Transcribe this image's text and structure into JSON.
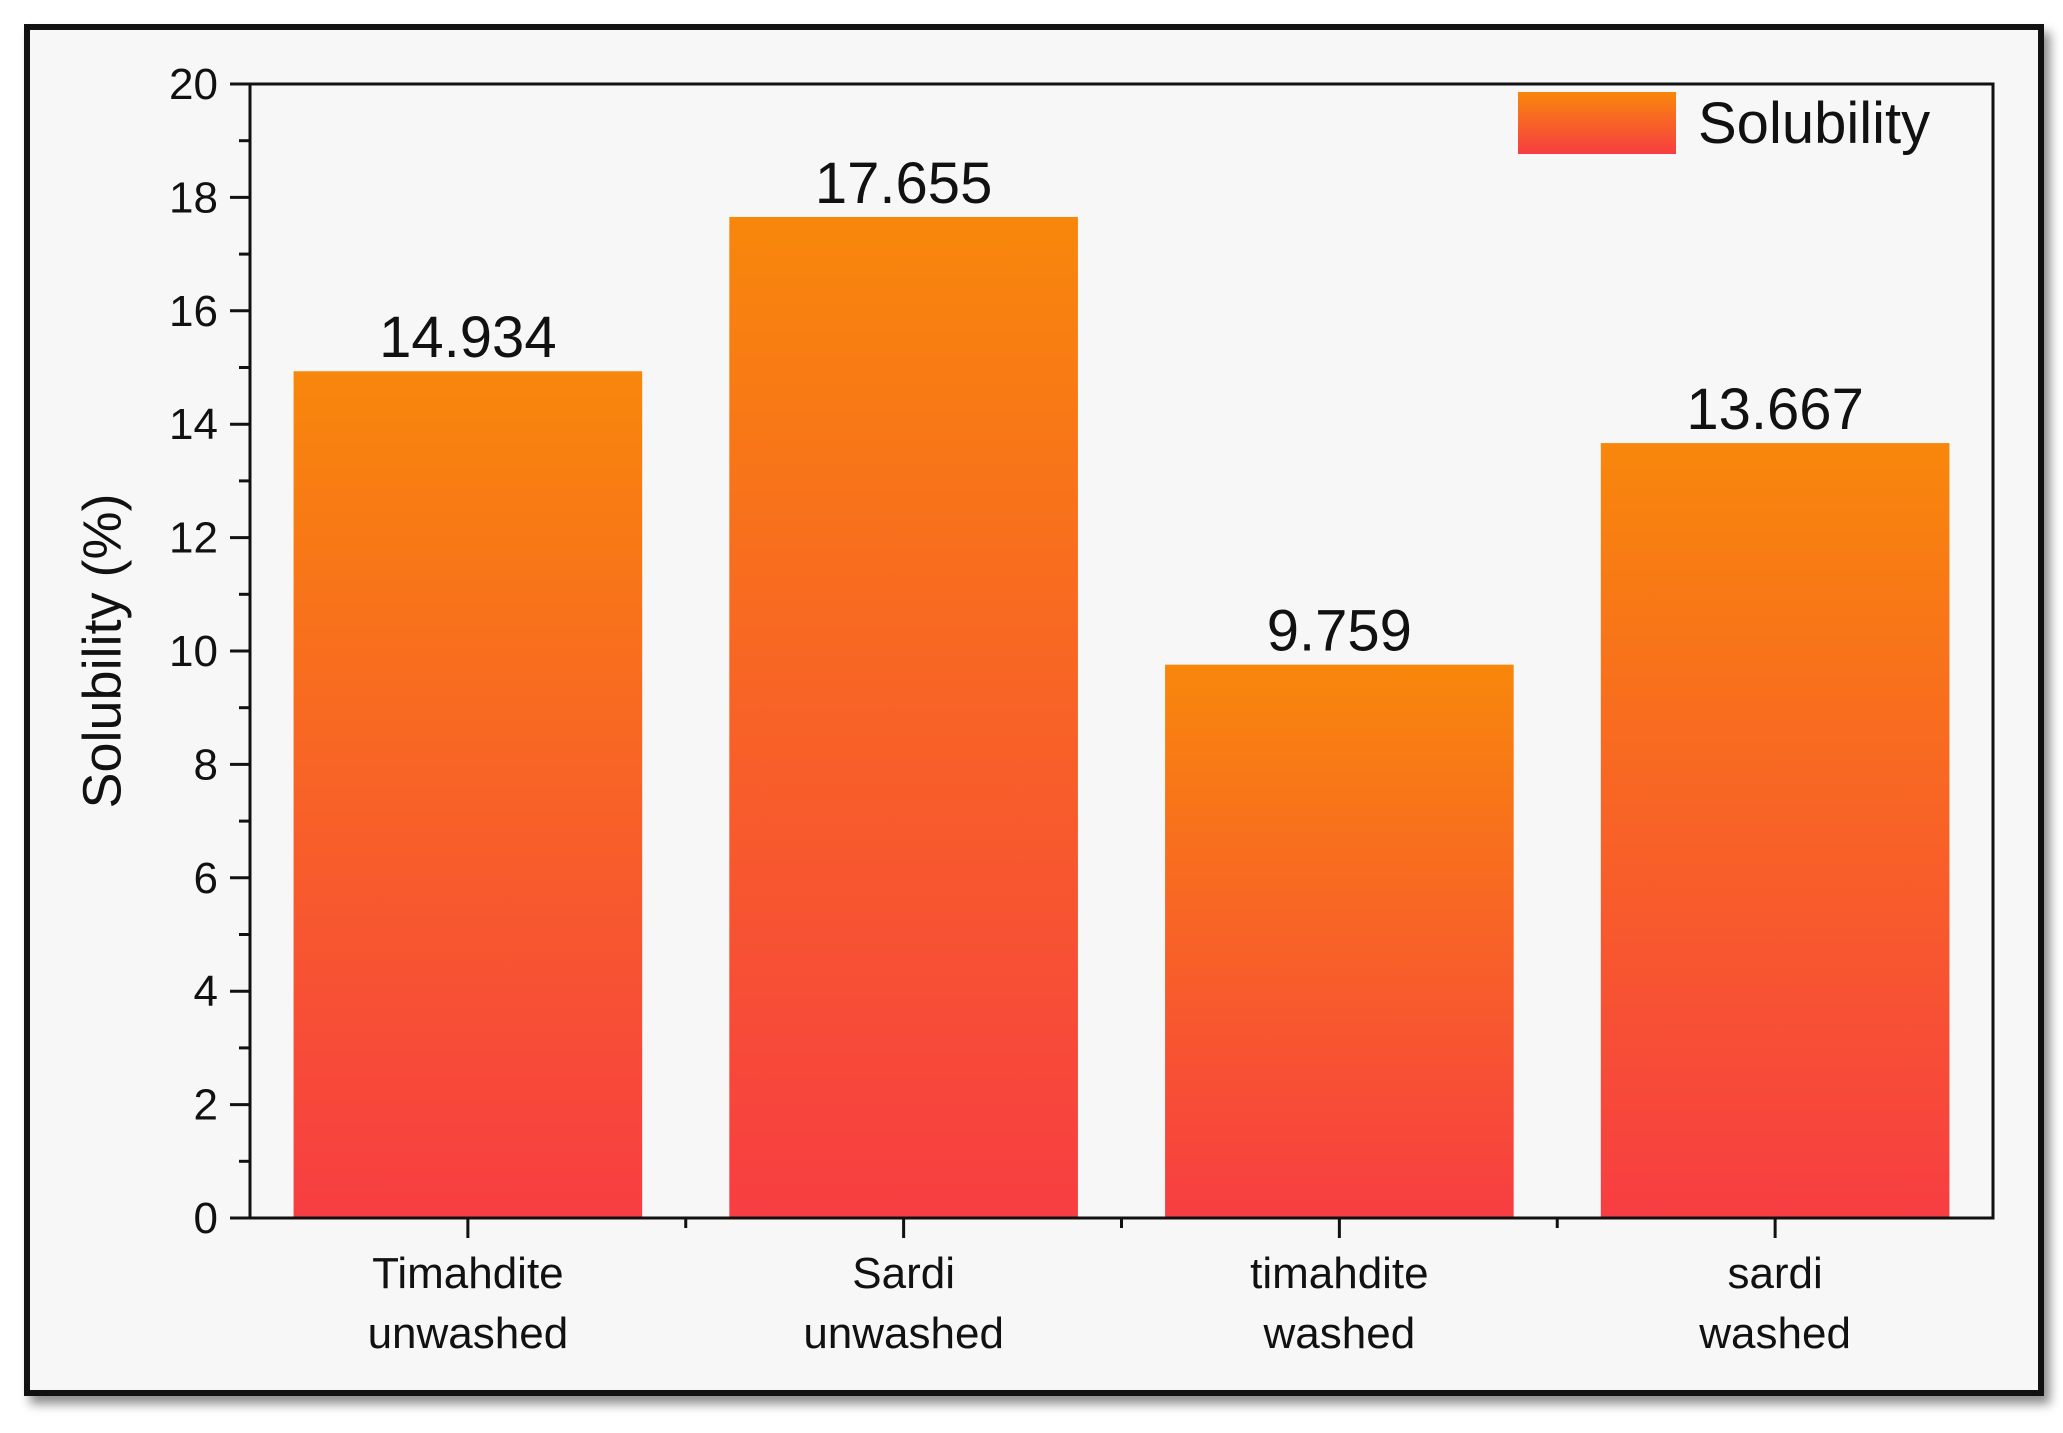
{
  "chart_data": {
    "type": "bar",
    "categories": [
      [
        "Timahdite",
        "unwashed"
      ],
      [
        "Sardi",
        "unwashed"
      ],
      [
        "timahdite",
        "washed"
      ],
      [
        "sardi",
        "washed"
      ]
    ],
    "series": [
      {
        "name": "Solubility",
        "values": [
          14.934,
          17.655,
          9.759,
          13.667
        ]
      }
    ],
    "value_labels": [
      "14.934",
      "17.655",
      "9.759",
      "13.667"
    ],
    "ylabel": "Solubility (%)",
    "xlabel": "",
    "ylim": [
      0,
      20
    ],
    "yticks": [
      0,
      2,
      4,
      6,
      8,
      10,
      12,
      14,
      16,
      18,
      20
    ],
    "grid": false,
    "legend_position": "top-right",
    "colors": {
      "bar_top": "#f8870b",
      "bar_bottom": "#f73d42",
      "axis": "#111111",
      "background": "#f7f7f7"
    }
  }
}
